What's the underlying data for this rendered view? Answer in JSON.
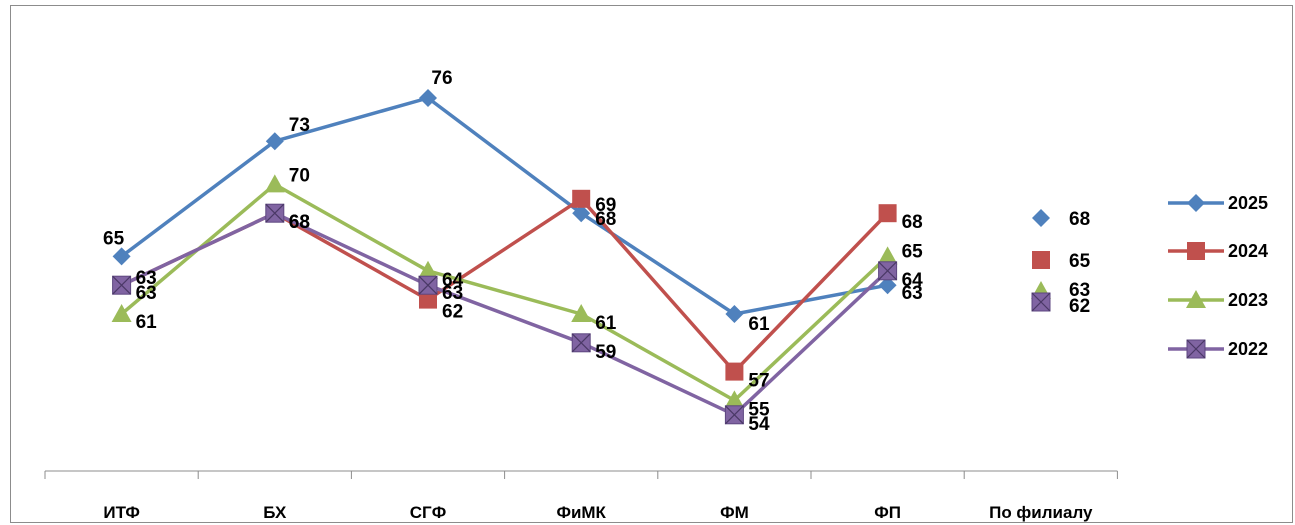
{
  "chart_data": {
    "type": "line",
    "categories": [
      "ИТФ",
      "БХ",
      "СГФ",
      "ФиМК",
      "ФМ",
      "ФП",
      "По филиалу"
    ],
    "series": [
      {
        "name": "2025",
        "color": "#4F81BD",
        "marker": "diamond",
        "values": [
          65,
          73,
          76,
          68,
          61,
          63,
          68
        ]
      },
      {
        "name": "2024",
        "color": "#C0504D",
        "marker": "square",
        "values": [
          63,
          68,
          62,
          69,
          57,
          68,
          65
        ]
      },
      {
        "name": "2023",
        "color": "#9BBB59",
        "marker": "triangle",
        "values": [
          61,
          70,
          64,
          61,
          55,
          65,
          63
        ]
      },
      {
        "name": "2022",
        "color": "#8064A2",
        "marker": "x-square",
        "values": [
          63,
          68,
          63,
          59,
          54,
          64,
          62
        ]
      }
    ],
    "legend_position": "right",
    "grid": false,
    "ylim": [
      45,
      79
    ]
  }
}
